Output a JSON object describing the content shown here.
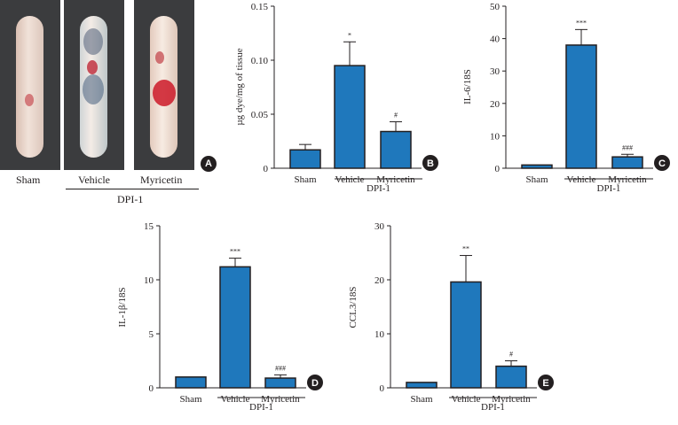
{
  "panel_a": {
    "label": "A",
    "samples": [
      "Sham",
      "Vehicle",
      "Myricetin"
    ],
    "group_label": "DPI-1"
  },
  "chart_data": [
    {
      "panel": "B",
      "type": "bar",
      "title": "",
      "ylabel": "µg dye/mg of tissue",
      "ylim": [
        0,
        0.15
      ],
      "yticks": [
        0,
        0.05,
        0.1,
        0.15
      ],
      "ytick_labels": [
        "0",
        "0.05",
        "0.10",
        "0.15"
      ],
      "categories": [
        "Sham",
        "Vehicle",
        "Myricetin"
      ],
      "values": [
        0.017,
        0.095,
        0.034
      ],
      "errors": [
        0.005,
        0.022,
        0.009
      ],
      "significance": [
        "",
        "*",
        "#"
      ],
      "group_label": "DPI-1",
      "bar_color": "#1f78bc"
    },
    {
      "panel": "C",
      "type": "bar",
      "title": "",
      "ylabel": "IL-6/18S",
      "ylim": [
        0,
        50
      ],
      "yticks": [
        0,
        10,
        20,
        30,
        40,
        50
      ],
      "ytick_labels": [
        "0",
        "10",
        "20",
        "30",
        "40",
        "50"
      ],
      "categories": [
        "Sham",
        "Vehicle",
        "Myricetin"
      ],
      "values": [
        1,
        38,
        3.5
      ],
      "errors": [
        0,
        4.8,
        0.8
      ],
      "significance": [
        "",
        "***",
        "###"
      ],
      "group_label": "DPI-1",
      "bar_color": "#1f78bc"
    },
    {
      "panel": "D",
      "type": "bar",
      "title": "",
      "ylabel": "IL-1β/18S",
      "ylim": [
        0,
        15
      ],
      "yticks": [
        0,
        5,
        10,
        15
      ],
      "ytick_labels": [
        "0",
        "5",
        "10",
        "15"
      ],
      "categories": [
        "Sham",
        "Vehicle",
        "Myricetin"
      ],
      "values": [
        1,
        11.2,
        0.9
      ],
      "errors": [
        0,
        0.8,
        0.3
      ],
      "significance": [
        "",
        "***",
        "###"
      ],
      "group_label": "DPI-1",
      "bar_color": "#1f78bc"
    },
    {
      "panel": "E",
      "type": "bar",
      "title": "",
      "ylabel": "CCL3/18S",
      "ylim": [
        0,
        30
      ],
      "yticks": [
        0,
        10,
        20,
        30
      ],
      "ytick_labels": [
        "0",
        "10",
        "20",
        "30"
      ],
      "categories": [
        "Sham",
        "Vehicle",
        "Myricetin"
      ],
      "values": [
        1,
        19.6,
        4
      ],
      "errors": [
        0,
        4.9,
        1
      ],
      "significance": [
        "",
        "**",
        "#"
      ],
      "group_label": "DPI-1",
      "bar_color": "#1f78bc"
    }
  ]
}
